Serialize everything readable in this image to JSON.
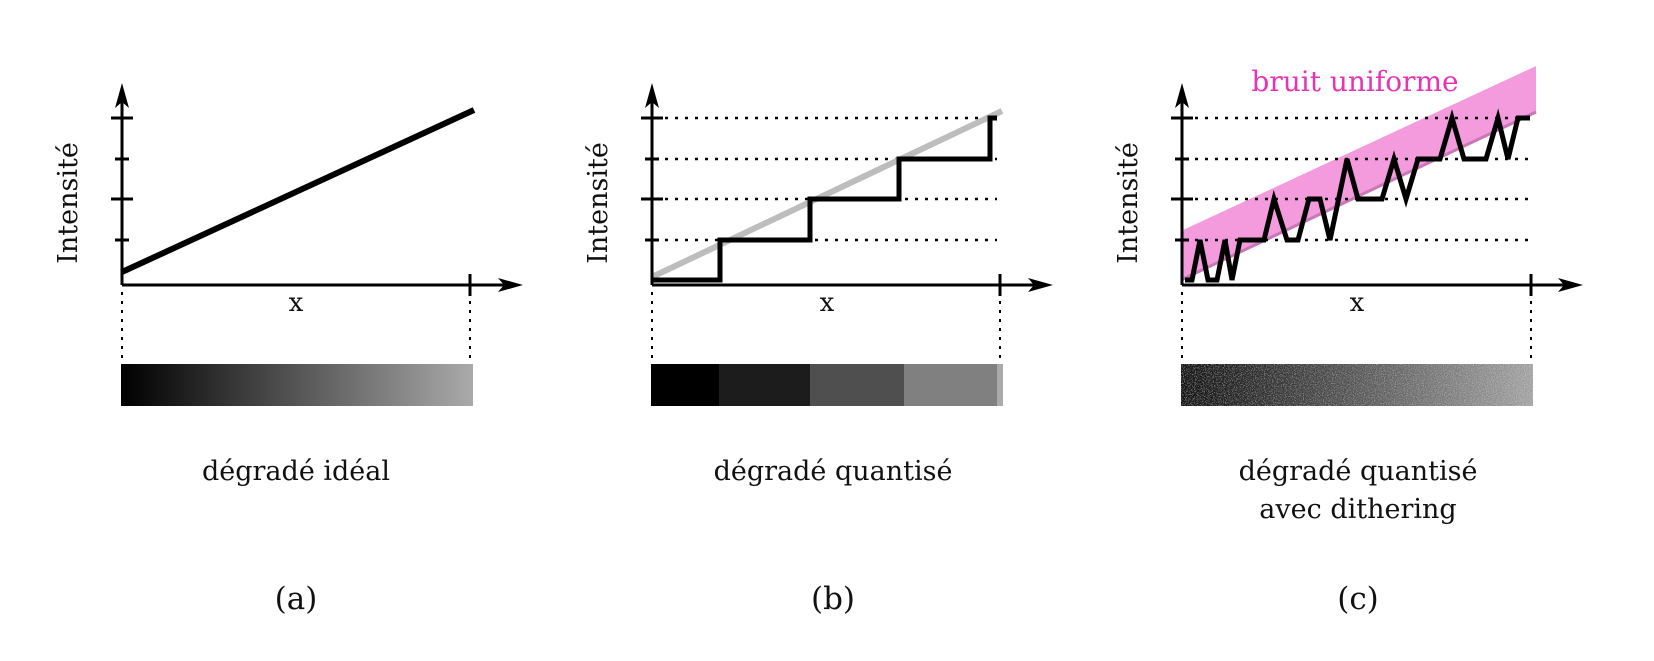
{
  "colors": {
    "axis": "#000000",
    "curve": "#000000",
    "ideal_line_ghost": "#bdbdbd",
    "noise_band": "#f39bdc",
    "noise_band_edge": "#c977b7",
    "noise_label": "#e535b4"
  },
  "panels": [
    {
      "id": "a",
      "ylabel": "Intensité",
      "xlabel": "x",
      "caption_lines": [
        "dégradé idéal"
      ],
      "label": "(a)",
      "gradient": {
        "kind": "smooth",
        "from_level": 0.0,
        "to_level": 0.67
      }
    },
    {
      "id": "b",
      "ylabel": "Intensité",
      "xlabel": "x",
      "caption_lines": [
        "dégradé quantisé"
      ],
      "label": "(b)",
      "quantization_levels": [
        0,
        0.25,
        0.5,
        0.75,
        1.0
      ],
      "gradient": {
        "kind": "stepped",
        "bands": [
          {
            "from_x": 0.0,
            "to_x": 0.19,
            "level": 0.0
          },
          {
            "from_x": 0.19,
            "to_x": 0.45,
            "level": 0.11
          },
          {
            "from_x": 0.45,
            "to_x": 0.72,
            "level": 0.31
          },
          {
            "from_x": 0.72,
            "to_x": 0.98,
            "level": 0.5
          },
          {
            "from_x": 0.98,
            "to_x": 1.0,
            "level": 0.67
          }
        ]
      }
    },
    {
      "id": "c",
      "ylabel": "Intensité",
      "xlabel": "x",
      "caption_lines": [
        "dégradé quantisé",
        "avec dithering"
      ],
      "label": "(c)",
      "noise_label": "bruit uniforme",
      "gradient": {
        "kind": "dithered",
        "from_level": 0.07,
        "to_level": 0.67
      }
    }
  ]
}
